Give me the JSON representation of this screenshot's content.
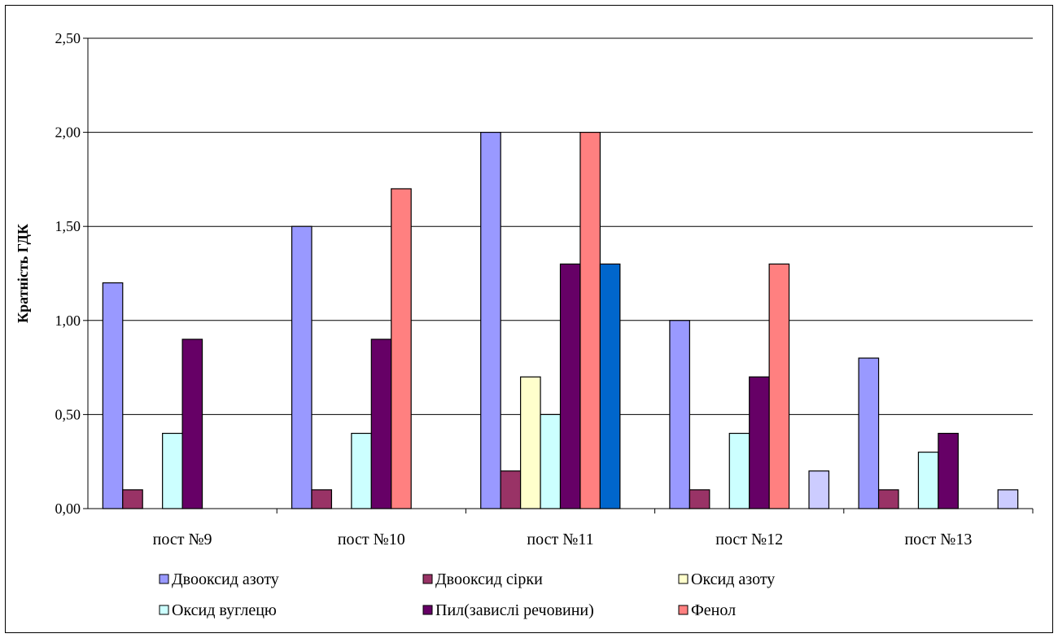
{
  "chart_data": {
    "type": "bar",
    "ylabel": "Кратність ГДК",
    "ylim": [
      0,
      2.5
    ],
    "yticks": [
      "0,00",
      "0,50",
      "1,00",
      "1,50",
      "2,00",
      "2,50"
    ],
    "grid": true,
    "legend_position": "bottom",
    "categories": [
      "пост №9",
      "пост №10",
      "пост №11",
      "пост №12",
      "пост №13"
    ],
    "series": [
      {
        "name": "Двооксид азоту",
        "color": "#9999ff",
        "values": [
          1.2,
          1.5,
          2.0,
          1.0,
          0.8
        ]
      },
      {
        "name": "Двооксид сірки",
        "color": "#993366",
        "values": [
          0.1,
          0.1,
          0.2,
          0.1,
          0.1
        ]
      },
      {
        "name": "Оксид азоту",
        "color": "#ffffcc",
        "values": [
          null,
          null,
          0.7,
          null,
          null
        ]
      },
      {
        "name": "Оксид вуглецю",
        "color": "#ccffff",
        "values": [
          0.4,
          0.4,
          0.5,
          0.4,
          0.3
        ]
      },
      {
        "name": "Пил(завислі  речовини)",
        "color": "#660066",
        "values": [
          0.9,
          0.9,
          1.3,
          0.7,
          0.4
        ]
      },
      {
        "name": "Фенол",
        "color": "#ff8080",
        "values": [
          null,
          1.7,
          2.0,
          1.3,
          null
        ]
      },
      {
        "name": "",
        "color": "#0066cc",
        "values": [
          null,
          null,
          1.3,
          null,
          null
        ]
      },
      {
        "name": "",
        "color": "#ccccff",
        "values": [
          null,
          null,
          null,
          0.2,
          0.1
        ]
      }
    ]
  }
}
